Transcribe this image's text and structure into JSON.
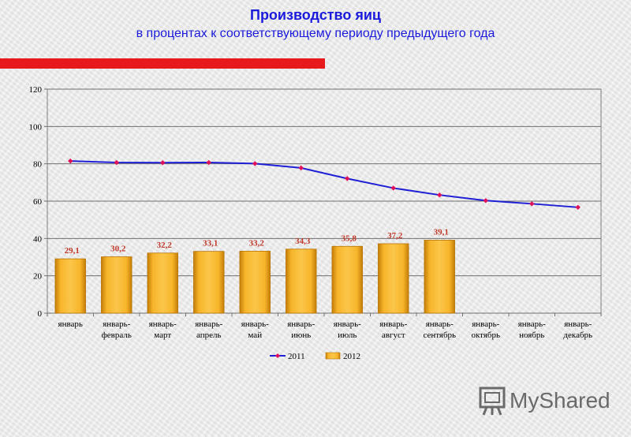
{
  "header": {
    "title": "Производство яиц",
    "subtitle": "в процентах к соответствующему периоду предыдущего года"
  },
  "logo": {
    "text": "MyShared"
  },
  "colors": {
    "title": "#1a1adc",
    "accent_bar": "#e8191d",
    "line_2011": "#1f1fd6",
    "marker_2011": "#e0105a",
    "bar_2012": "#f2a618",
    "data_label": "#c0392b"
  },
  "chart_data": {
    "type": "bar+line",
    "categories": [
      "январь",
      "январь-\nфевраль",
      "январь-\nмарт",
      "январь-\nапрель",
      "январь-\nмай",
      "январь-\nиюнь",
      "январь-\nиюль",
      "январь-\nавгуст",
      "январь-\nсентябрь",
      "январь-\nоктябрь",
      "январь-\nноябрь",
      "январь-\nдекабрь"
    ],
    "series": [
      {
        "name": "2011",
        "type": "line",
        "values": [
          81.5,
          80.7,
          80.6,
          80.7,
          80.1,
          77.8,
          72.1,
          67.0,
          63.3,
          60.3,
          58.6,
          56.7
        ]
      },
      {
        "name": "2012",
        "type": "bar",
        "values": [
          29.1,
          30.2,
          32.2,
          33.1,
          33.2,
          34.3,
          35.8,
          37.2,
          39.1,
          null,
          null,
          null
        ],
        "labels": [
          "29,1",
          "30,2",
          "32,2",
          "33,1",
          "33,2",
          "34,3",
          "35,8",
          "37,2",
          "39,1",
          "",
          "",
          ""
        ]
      }
    ],
    "ylim": [
      0,
      120
    ],
    "yticks": [
      0,
      20,
      40,
      60,
      80,
      100,
      120
    ],
    "grid": true,
    "legend": "bottom"
  }
}
